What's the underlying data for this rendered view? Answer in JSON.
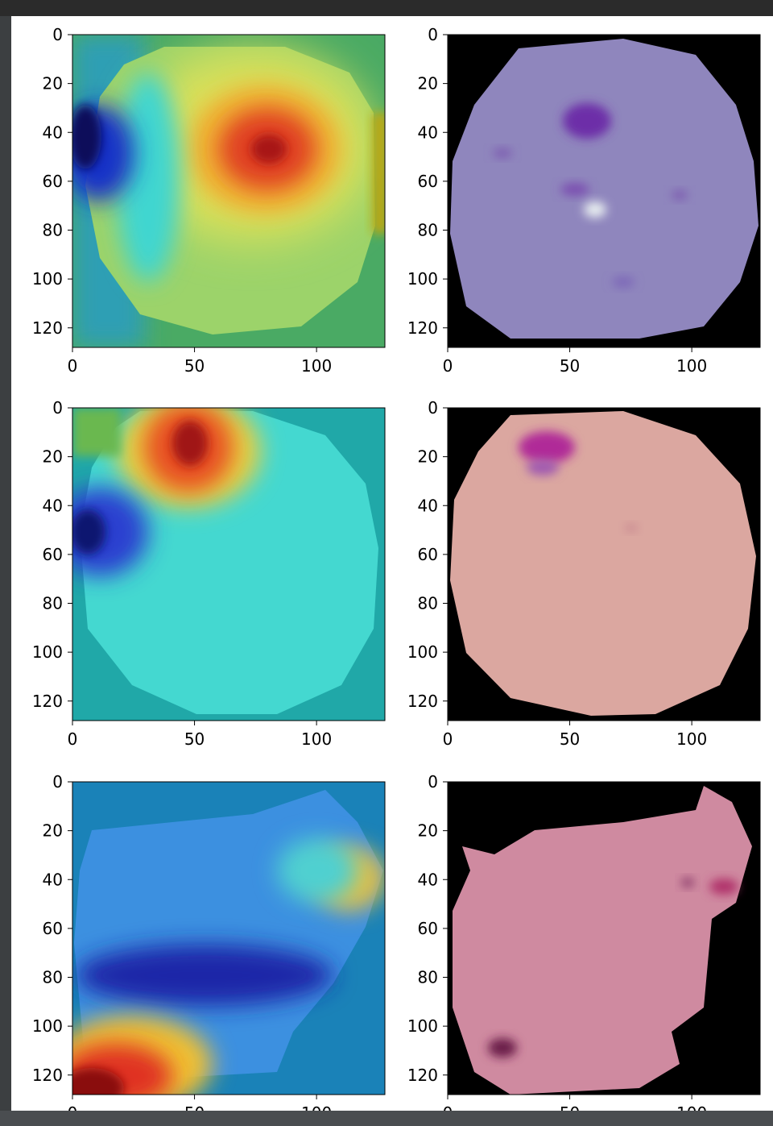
{
  "figure": {
    "panels": [
      {
        "row": 1,
        "col": 1,
        "kind": "heatmap",
        "colormap": "jet-overlay",
        "x_ticks": [
          "0",
          "50",
          "100"
        ],
        "y_ticks": [
          "0",
          "20",
          "40",
          "60",
          "80",
          "100",
          "120"
        ]
      },
      {
        "row": 1,
        "col": 2,
        "kind": "cell-image",
        "tint": "purple",
        "x_ticks": [
          "0",
          "50",
          "100"
        ],
        "y_ticks": [
          "0",
          "20",
          "40",
          "60",
          "80",
          "100",
          "120"
        ]
      },
      {
        "row": 2,
        "col": 1,
        "kind": "heatmap",
        "colormap": "jet-overlay",
        "x_ticks": [
          "0",
          "50",
          "100"
        ],
        "y_ticks": [
          "0",
          "20",
          "40",
          "60",
          "80",
          "100",
          "120"
        ]
      },
      {
        "row": 2,
        "col": 2,
        "kind": "cell-image",
        "tint": "pink",
        "x_ticks": [
          "0",
          "50",
          "100"
        ],
        "y_ticks": [
          "0",
          "20",
          "40",
          "60",
          "80",
          "100",
          "120"
        ]
      },
      {
        "row": 3,
        "col": 1,
        "kind": "heatmap",
        "colormap": "jet-overlay",
        "x_ticks": [
          "0",
          "50",
          "100"
        ],
        "y_ticks": [
          "0",
          "20",
          "40",
          "60",
          "80",
          "100",
          "120"
        ]
      },
      {
        "row": 3,
        "col": 2,
        "kind": "cell-image",
        "tint": "pink",
        "x_ticks": [
          "0",
          "50",
          "100"
        ],
        "y_ticks": [
          "0",
          "20",
          "40",
          "60",
          "80",
          "100",
          "120"
        ]
      }
    ]
  },
  "colors": {
    "panel_background": "#2b2b2b",
    "output_background": "#ffffff",
    "image_background": "#000000"
  }
}
